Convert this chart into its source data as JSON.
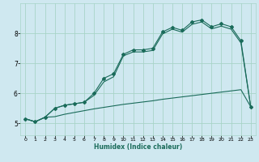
{
  "xlabel": "Humidex (Indice chaleur)",
  "background_color": "#cfe8f0",
  "grid_color": "#a8d4c8",
  "line_color": "#1a6b5a",
  "xlim": [
    -0.5,
    23.5
  ],
  "ylim": [
    4.6,
    9.0
  ],
  "yticks": [
    5,
    6,
    7,
    8
  ],
  "xticks": [
    0,
    1,
    2,
    3,
    4,
    5,
    6,
    7,
    8,
    9,
    10,
    11,
    12,
    13,
    14,
    15,
    16,
    17,
    18,
    19,
    20,
    21,
    22,
    23
  ],
  "line1_x": [
    0,
    1,
    2,
    3,
    4,
    5,
    6,
    7,
    8,
    9,
    10,
    11,
    12,
    13,
    14,
    15,
    16,
    17,
    18,
    19,
    20,
    21,
    22,
    23
  ],
  "line1_y": [
    5.15,
    5.05,
    5.2,
    5.22,
    5.3,
    5.36,
    5.42,
    5.48,
    5.53,
    5.58,
    5.63,
    5.67,
    5.71,
    5.75,
    5.8,
    5.84,
    5.88,
    5.92,
    5.96,
    6.0,
    6.04,
    6.08,
    6.12,
    5.55
  ],
  "line2_x": [
    0,
    1,
    2,
    3,
    4,
    5,
    6,
    7,
    8,
    9,
    10,
    11,
    12,
    13,
    14,
    15,
    16,
    17,
    18,
    19,
    20,
    21,
    22,
    23
  ],
  "line2_y": [
    5.15,
    5.05,
    5.2,
    5.5,
    5.6,
    5.65,
    5.7,
    6.0,
    6.5,
    6.65,
    7.3,
    7.45,
    7.45,
    7.5,
    8.05,
    8.2,
    8.1,
    8.38,
    8.45,
    8.22,
    8.32,
    8.22,
    7.75,
    5.55
  ],
  "line3_x": [
    0,
    1,
    2,
    3,
    4,
    5,
    6,
    7,
    8,
    9,
    10,
    11,
    12,
    13,
    14,
    15,
    16,
    17,
    18,
    19,
    20,
    21,
    22,
    23
  ],
  "line3_y": [
    5.15,
    5.05,
    5.2,
    5.5,
    5.6,
    5.65,
    5.7,
    5.93,
    6.38,
    6.55,
    7.25,
    7.38,
    7.38,
    7.43,
    7.98,
    8.14,
    8.04,
    8.3,
    8.38,
    8.15,
    8.24,
    8.14,
    7.68,
    5.55
  ]
}
